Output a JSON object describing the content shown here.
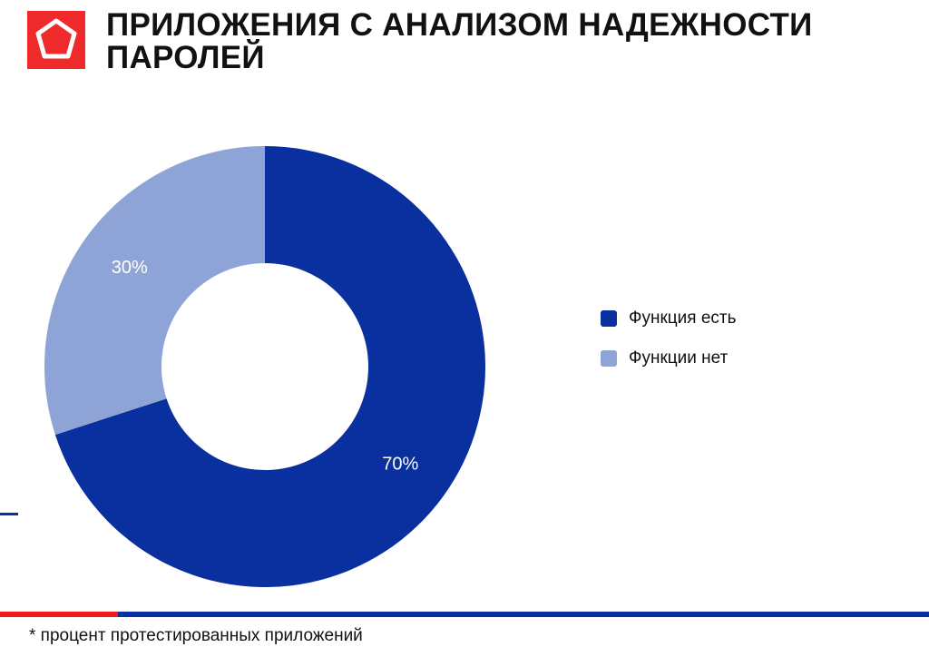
{
  "header": {
    "title_line1": "ПРИЛОЖЕНИЯ С АНАЛИЗОМ НАДЕЖНОСТИ",
    "title_line2": "ПАРОЛЕЙ",
    "logo_icon": "pentagon-icon"
  },
  "colors": {
    "brand_red": "#ee2a2a",
    "series_dark": "#0a2f9e",
    "series_light": "#8fa4d6"
  },
  "chart_data": {
    "type": "pie",
    "variant": "donut",
    "title": "ПРИЛОЖЕНИЯ С АНАЛИЗОМ НАДЕЖНОСТИ ПАРОЛЕЙ",
    "categories": [
      "Функция есть",
      "Функции нет"
    ],
    "values": [
      70,
      30
    ],
    "labels": [
      "70%",
      "30%"
    ],
    "colors": [
      "#0a2f9e",
      "#8fa4d6"
    ],
    "legend_position": "right",
    "note": "* процент протестированных приложений"
  },
  "legend": {
    "items": [
      {
        "label": "Функция есть",
        "color": "#0a2f9e"
      },
      {
        "label": "Функции нет",
        "color": "#8fa4d6"
      }
    ]
  },
  "footer": {
    "note": "* процент протестированных приложений"
  }
}
